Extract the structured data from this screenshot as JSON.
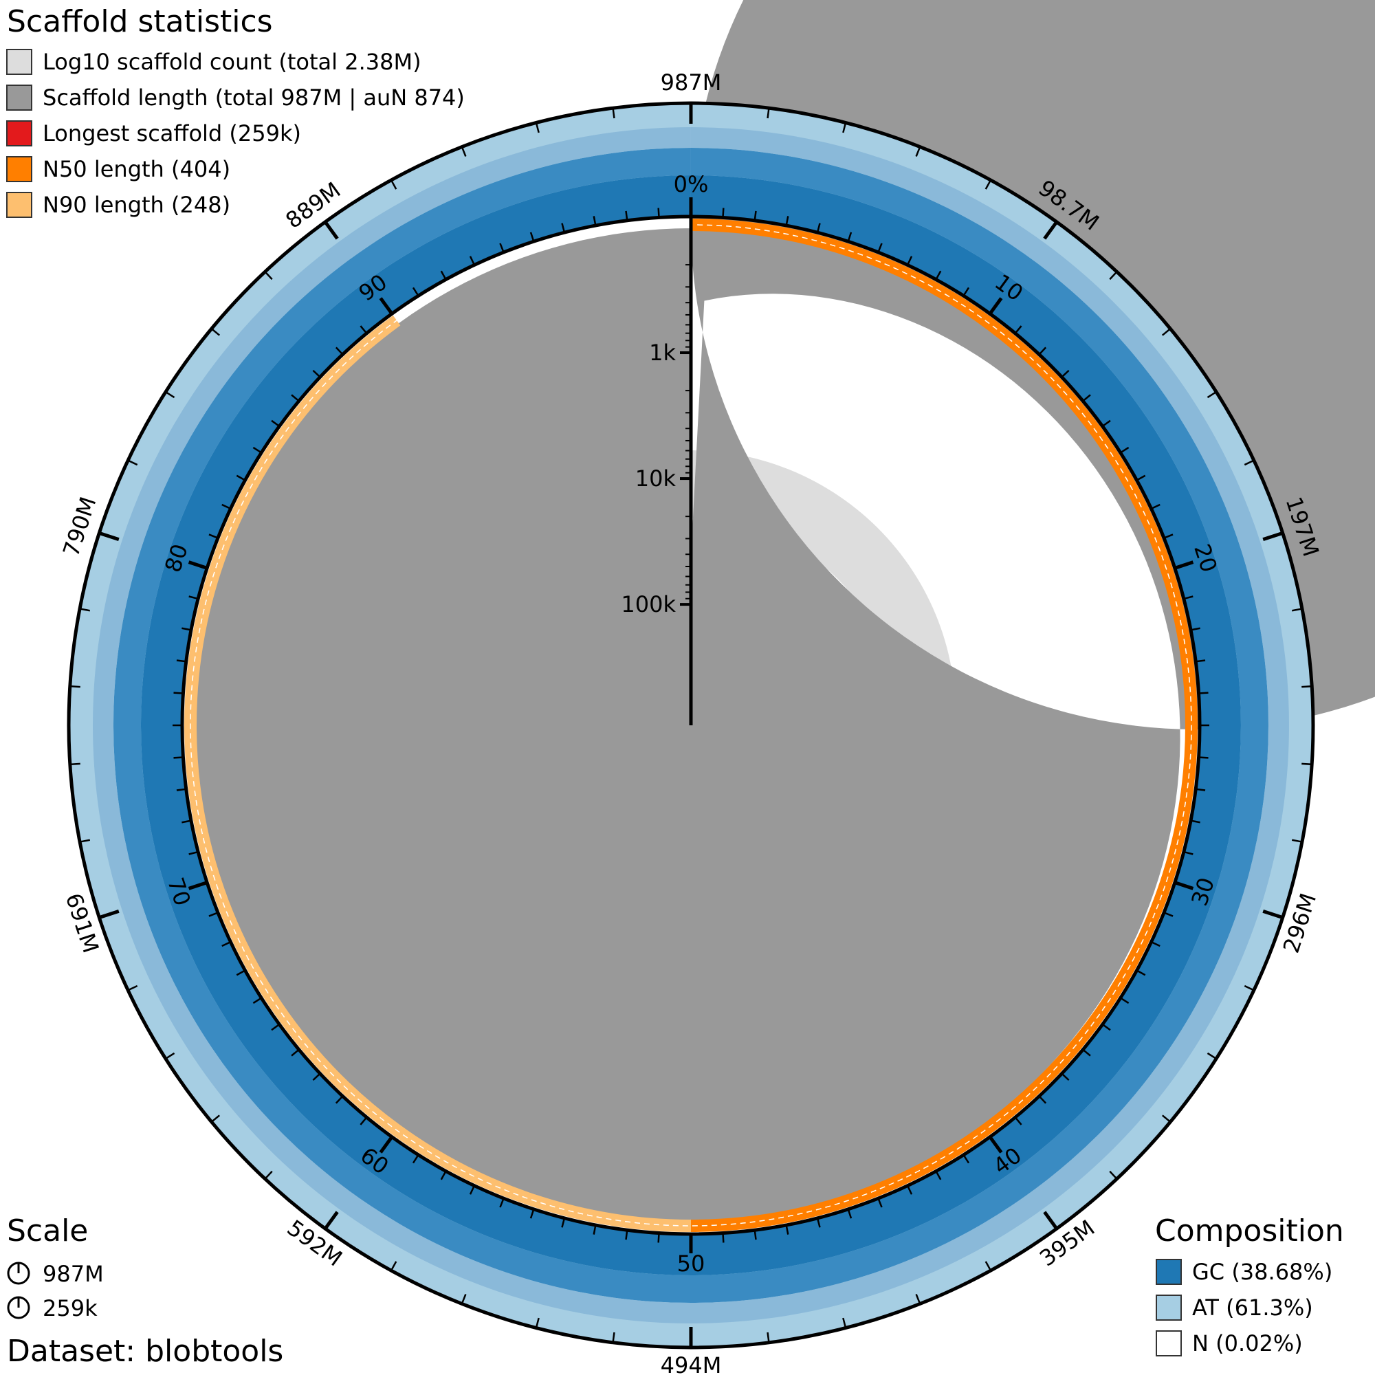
{
  "legend": {
    "title": "Scaffold statistics",
    "items": [
      {
        "label": "Log10 scaffold count (total 2.38M)",
        "color": "#dddddd"
      },
      {
        "label": "Scaffold length (total 987M | auN 874)",
        "color": "#999999"
      },
      {
        "label": "Longest scaffold (259k)",
        "color": "#e31a1c"
      },
      {
        "label": "N50 length (404)",
        "color": "#ff7f00"
      },
      {
        "label": "N90 length (248)",
        "color": "#fdbf6f"
      }
    ]
  },
  "scale": {
    "title": "Scale",
    "items": [
      "987M",
      "259k"
    ]
  },
  "dataset": "Dataset: blobtools",
  "composition": {
    "title": "Composition",
    "items": [
      {
        "label": "GC (38.68%)",
        "color": "#1f78b4"
      },
      {
        "label": "AT (61.3%)",
        "color": "#a6cee3"
      },
      {
        "label": "N (0.02%)",
        "color": "#ffffff"
      }
    ]
  },
  "chart_data": {
    "type": "snail",
    "total_span": "987M",
    "scaffold_count_total": "2.38M",
    "longest_scaffold": 259000,
    "n50_length": 404,
    "n90_length": 248,
    "auN": 874,
    "gc_percent": 38.68,
    "at_percent": 61.3,
    "n_percent": 0.02,
    "outer_tick_labels": [
      "987M",
      "98.7M",
      "197M",
      "296M",
      "395M",
      "494M",
      "592M",
      "691M",
      "790M",
      "889M"
    ],
    "percent_labels": [
      "0%",
      "10",
      "20",
      "30",
      "40",
      "50",
      "60",
      "70",
      "80",
      "90"
    ],
    "length_axis_labels": [
      "1k",
      "10k",
      "100k"
    ],
    "length_axis_values": [
      1000,
      10000,
      100000
    ],
    "n50_percentile": 50,
    "n90_percentile": 90,
    "colors": {
      "count": "#dddddd",
      "length": "#999999",
      "longest": "#e31a1c",
      "n50": "#ff7f00",
      "n90": "#fdbf6f",
      "gc": "#1f78b4",
      "at": "#a6cee3"
    }
  }
}
